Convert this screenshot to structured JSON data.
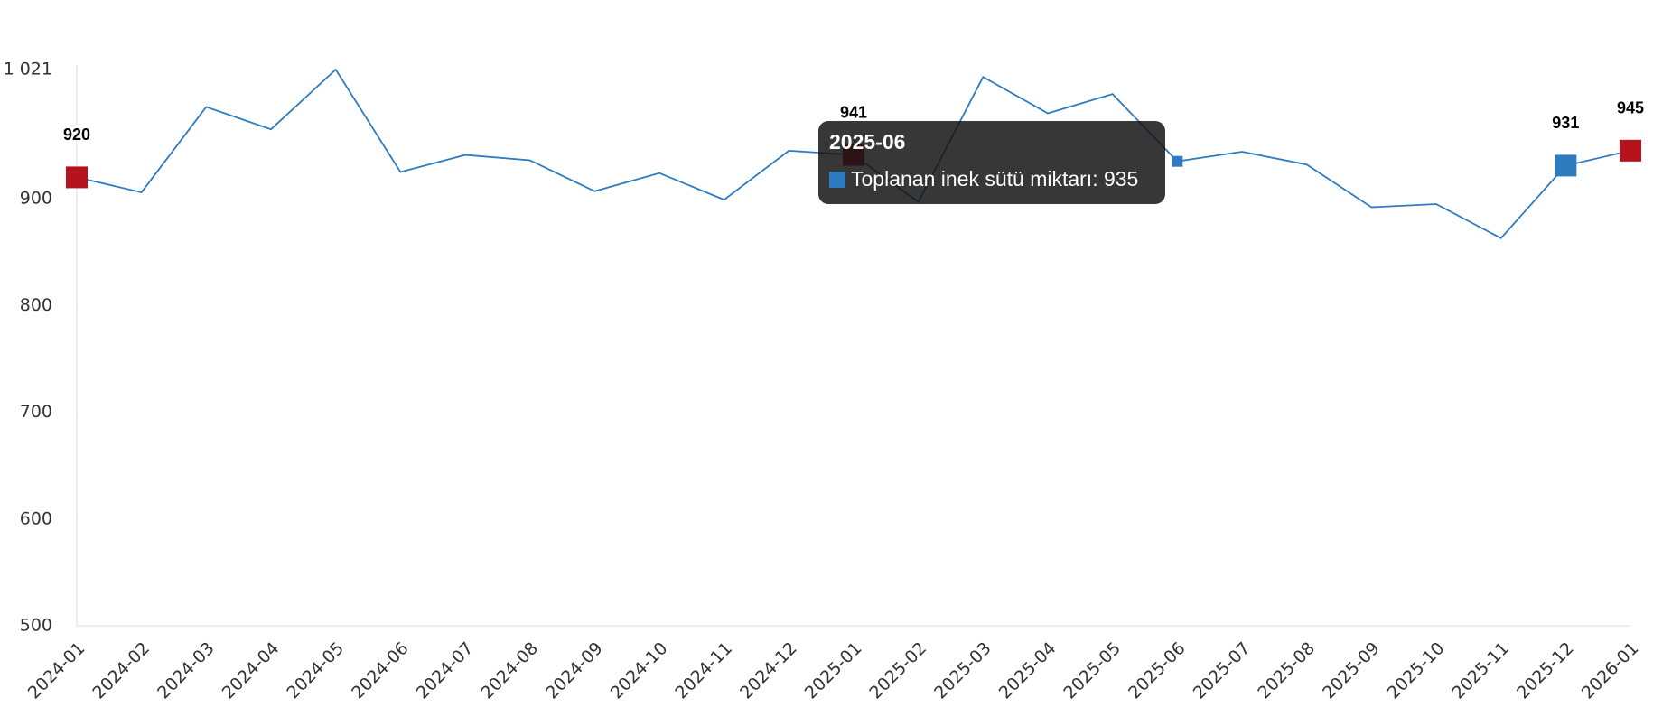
{
  "chart_data": {
    "type": "line",
    "categories": [
      "2024-01",
      "2024-02",
      "2024-03",
      "2024-04",
      "2024-05",
      "2024-06",
      "2024-07",
      "2024-08",
      "2024-09",
      "2024-10",
      "2024-11",
      "2024-12",
      "2025-01",
      "2025-02",
      "2025-03",
      "2025-04",
      "2025-05",
      "2025-06",
      "2025-07",
      "2025-08",
      "2025-09",
      "2025-10",
      "2025-11",
      "2025-12",
      "2026-01"
    ],
    "series": [
      {
        "name": "Toplanan inek sütü miktarı",
        "color": "#2e7bbf",
        "values": [
          920,
          906,
          986,
          965,
          1021,
          925,
          941,
          936,
          907,
          924,
          899,
          945,
          941,
          897,
          1014,
          980,
          998,
          935,
          944,
          932,
          892,
          895,
          863,
          931,
          945
        ]
      }
    ],
    "ylim": [
      500,
      1021
    ],
    "yticks": [
      500,
      600,
      700,
      800,
      900,
      {
        "value": 1021,
        "label": "1 021"
      }
    ],
    "markers": [
      {
        "index": 0,
        "color": "#b5121b"
      },
      {
        "index": 12,
        "color": "#b5121b"
      },
      {
        "index": 23,
        "color": "#2e7bbf"
      },
      {
        "index": 24,
        "color": "#b5121b"
      }
    ],
    "tooltip": {
      "title": "2025-06",
      "text": "Toplanan inek sütü miktarı: 935",
      "index": 17
    }
  }
}
